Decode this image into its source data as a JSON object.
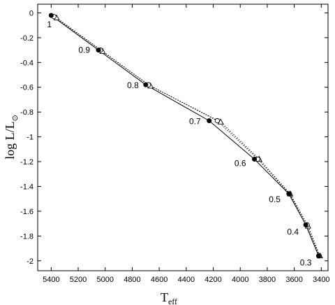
{
  "chart_data": {
    "type": "line",
    "xlabel_main": "T",
    "xlabel_sub": "eff",
    "ylabel_main": "log L/L",
    "ylabel_sub": "⊙",
    "xlim": [
      5500,
      3350
    ],
    "ylim": [
      -2.08,
      0.07
    ],
    "x_reversed": true,
    "grid": false,
    "xticks": [
      5400,
      5200,
      5000,
      4800,
      4600,
      4400,
      4200,
      4000,
      3800,
      3600,
      3400
    ],
    "yticks": [
      0,
      -0.2,
      -0.4,
      -0.6,
      -0.8,
      -1,
      -1.2,
      -1.4,
      -1.6,
      -1.8,
      -2
    ],
    "masses": [
      "1",
      "0.9",
      "0.8",
      "0.7",
      "0.6",
      "0.5",
      "0.4",
      "0.3"
    ],
    "series": [
      {
        "style": "solid",
        "marker": "filled-circle",
        "x": [
          5400,
          5050,
          4700,
          4230,
          3895,
          3640,
          3515,
          3420
        ],
        "y": [
          -0.02,
          -0.3,
          -0.58,
          -0.87,
          -1.18,
          -1.46,
          -1.71,
          -1.96
        ]
      },
      {
        "style": "dotted",
        "marker": "open-circle",
        "x": [
          5380,
          5035,
          4680,
          4170,
          3870,
          3635,
          3505,
          3415
        ],
        "y": [
          -0.03,
          -0.3,
          -0.58,
          -0.87,
          -1.18,
          -1.46,
          -1.71,
          -1.96
        ]
      },
      {
        "style": "dotted",
        "marker": "open-triangle",
        "x": [
          5360,
          5020,
          4665,
          4145,
          3860,
          3630,
          3498,
          3410
        ],
        "y": [
          -0.04,
          -0.31,
          -0.59,
          -0.88,
          -1.18,
          -1.46,
          -1.72,
          -1.96
        ]
      }
    ]
  }
}
